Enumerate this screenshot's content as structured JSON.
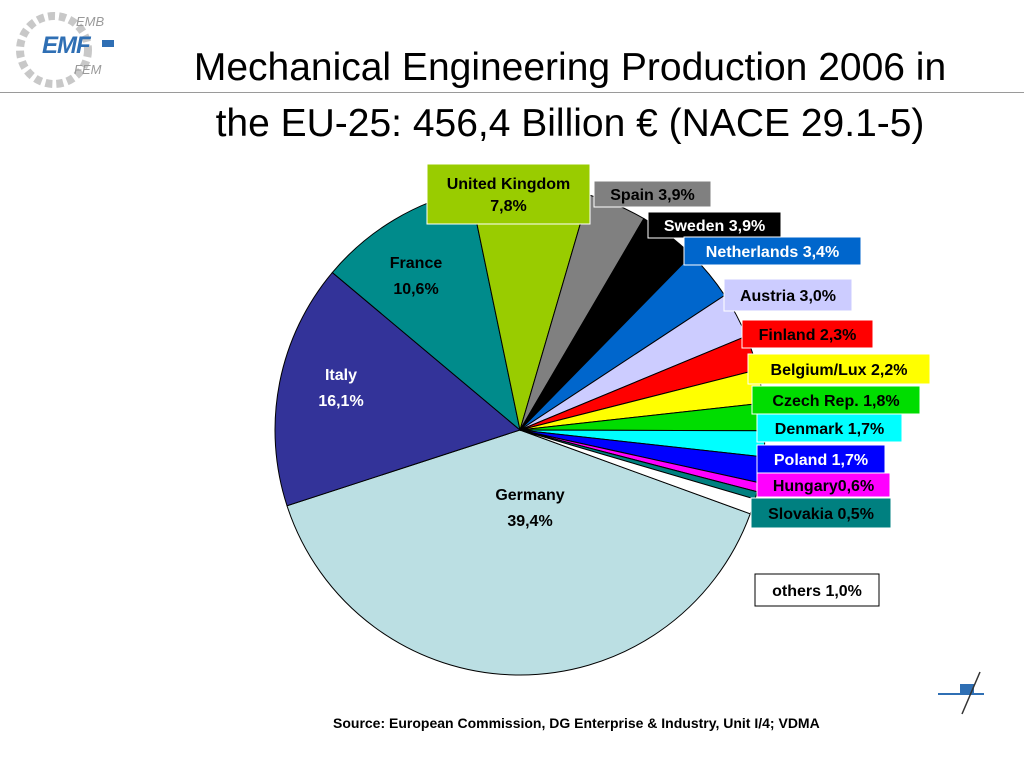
{
  "logo": {
    "top_text": "EMB",
    "main_text": "EMF",
    "bottom_text": "FEM"
  },
  "title": {
    "line1": "Mechanical Engineering Production 2006 in",
    "line2": "the EU-25: 456,4 Billion € (NACE 29.1-5)"
  },
  "source": "Source: European Commission, DG Enterprise & Industry, Unit I/4; VDMA",
  "chart_data": {
    "type": "pie",
    "title": "Mechanical Engineering Production 2006 in the EU-25: 456,4 Billion € (NACE 29.1-5)",
    "slices": [
      {
        "name": "Germany",
        "value": 39.4,
        "label": [
          "Germany",
          "39,4%"
        ],
        "color": "#bbdfe3",
        "label_style": "inside"
      },
      {
        "name": "Italy",
        "value": 16.1,
        "label": [
          "Italy",
          "16,1%"
        ],
        "color": "#333399",
        "label_style": "inside-light"
      },
      {
        "name": "France",
        "value": 10.6,
        "label": [
          "France",
          "10,6%"
        ],
        "color": "#008b8b",
        "label_style": "inside"
      },
      {
        "name": "United Kingdom",
        "value": 7.8,
        "label": [
          "United Kingdom",
          "7,8%"
        ],
        "color": "#99cc00",
        "label_style": "box",
        "box_color": "#99cc00",
        "text_color": "#000000"
      },
      {
        "name": "Spain",
        "value": 3.9,
        "label": [
          "Spain 3,9%"
        ],
        "color": "#808080",
        "label_style": "box",
        "box_color": "#808080",
        "text_color": "#000000"
      },
      {
        "name": "Sweden",
        "value": 3.9,
        "label": [
          "Sweden 3,9%"
        ],
        "color": "#000000",
        "label_style": "box",
        "box_color": "#000000",
        "text_color": "#ffffff"
      },
      {
        "name": "Netherlands",
        "value": 3.4,
        "label": [
          "Netherlands 3,4%"
        ],
        "color": "#0066cc",
        "label_style": "box",
        "box_color": "#0066cc",
        "text_color": "#ffffff"
      },
      {
        "name": "Austria",
        "value": 3.0,
        "label": [
          "Austria 3,0%"
        ],
        "color": "#ccccff",
        "label_style": "box",
        "box_color": "#ccccff",
        "text_color": "#000000"
      },
      {
        "name": "Finland",
        "value": 2.3,
        "label": [
          "Finland 2,3%"
        ],
        "color": "#ff0000",
        "label_style": "box",
        "box_color": "#ff0000",
        "text_color": "#000000"
      },
      {
        "name": "Belgium/Lux",
        "value": 2.2,
        "label": [
          "Belgium/Lux 2,2%"
        ],
        "color": "#ffff00",
        "label_style": "box",
        "box_color": "#ffff00",
        "text_color": "#000000"
      },
      {
        "name": "Czech Rep.",
        "value": 1.8,
        "label": [
          "Czech Rep. 1,8%"
        ],
        "color": "#00dd00",
        "label_style": "box",
        "box_color": "#00dd00",
        "text_color": "#000000"
      },
      {
        "name": "Denmark",
        "value": 1.7,
        "label": [
          "Denmark 1,7%"
        ],
        "color": "#00ffff",
        "label_style": "box",
        "box_color": "#00ffff",
        "text_color": "#000000"
      },
      {
        "name": "Poland",
        "value": 1.7,
        "label": [
          "Poland 1,7%"
        ],
        "color": "#0000ff",
        "label_style": "box",
        "box_color": "#0000ff",
        "text_color": "#ffffff"
      },
      {
        "name": "Hungary",
        "value": 0.6,
        "label": [
          "Hungary0,6%"
        ],
        "color": "#ff00ff",
        "label_style": "box",
        "box_color": "#ff00ff",
        "text_color": "#000000"
      },
      {
        "name": "Slovakia",
        "value": 0.5,
        "label": [
          "Slovakia 0,5%"
        ],
        "color": "#008080",
        "label_style": "box",
        "box_color": "#008080",
        "text_color": "#000000"
      },
      {
        "name": "others",
        "value": 1.0,
        "label": [
          "others 1,0%"
        ],
        "color": "#ffffff",
        "label_style": "box",
        "box_color": "#ffffff",
        "text_color": "#000000"
      }
    ],
    "legend": "none"
  }
}
